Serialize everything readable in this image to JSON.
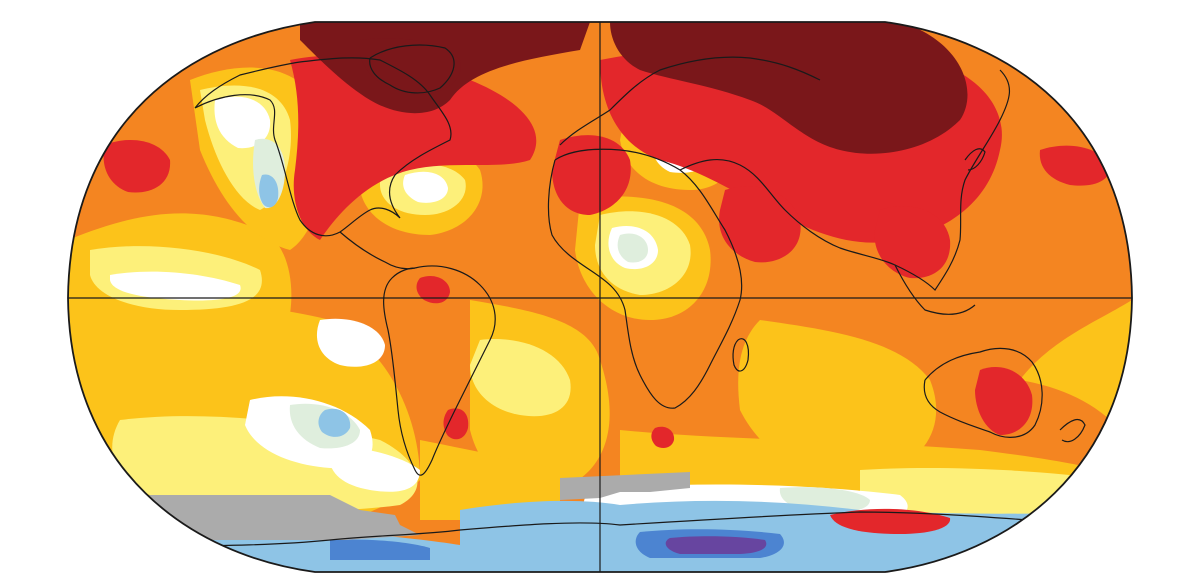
{
  "map": {
    "projection": "robinson-like",
    "graticule": [
      "equator",
      "prime-meridian"
    ],
    "palette": {
      "ocean_base": "#f48521",
      "land_base": "#f07f22",
      "strong_warm": "#7a171a",
      "warm": "#e3272b",
      "moderate": "#f48521",
      "mild": "#fcc31a",
      "slight": "#fdf07a",
      "neutral": "#ffffff",
      "cool": "#dfeedd",
      "cold": "#8ec4e6",
      "colder": "#4c84d1",
      "coldest": "#6745a0",
      "no_data": "#ababab",
      "outline": "#1a1a1a"
    },
    "region_names": [
      "arctic-hotspot-north-america",
      "arctic-hotspot-siberia",
      "warm-zone-europe-russia",
      "warm-zone-north-africa",
      "warm-zone-australia",
      "cool-zone-pacific",
      "cool-zone-southern-ocean",
      "no-data-antarctica"
    ]
  }
}
